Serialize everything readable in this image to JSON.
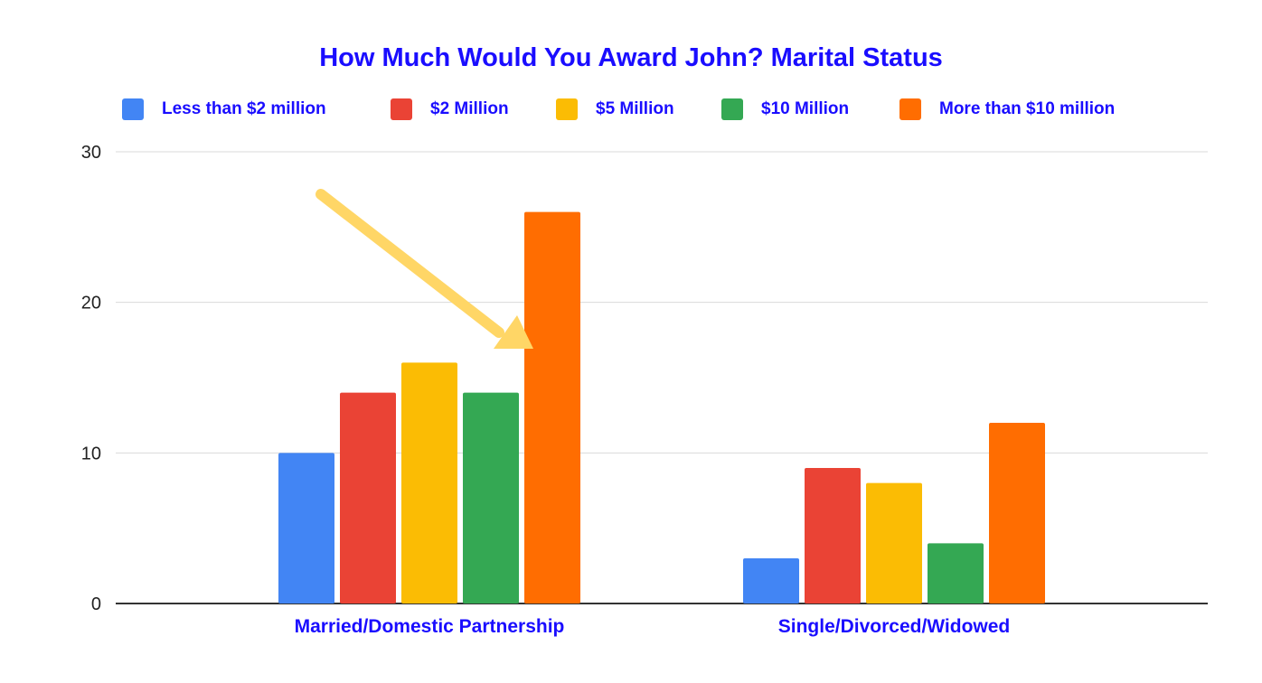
{
  "chart_data": {
    "type": "bar",
    "title": "How Much Would You Award John?  Marital Status",
    "categories": [
      "Married/Domestic Partnership",
      "Single/Divorced/Widowed"
    ],
    "series": [
      {
        "name": "Less than $2 million",
        "color": "#4285f4",
        "values": [
          10,
          3
        ]
      },
      {
        "name": "$2 Million",
        "color": "#ea4335",
        "values": [
          14,
          9
        ]
      },
      {
        "name": "$5 Million",
        "color": "#fbbc04",
        "values": [
          16,
          8
        ]
      },
      {
        "name": "$10 Million",
        "color": "#34a853",
        "values": [
          14,
          4
        ]
      },
      {
        "name": "More than $10 million",
        "color": "#ff6d01",
        "values": [
          26,
          12
        ]
      }
    ],
    "ylim": [
      0,
      30
    ],
    "yticks": [
      "0",
      "10",
      "20",
      "30"
    ],
    "grid": true,
    "legend_position": "top",
    "annotation": {
      "type": "arrow",
      "color": "#ffd666",
      "points_to": "Married/Domestic Partnership — More than $10 million"
    }
  },
  "colors": {
    "title_text": "#1a0dff",
    "axis_text": "#222222",
    "gridline": "#d9d9d9",
    "baseline": "#333333"
  }
}
